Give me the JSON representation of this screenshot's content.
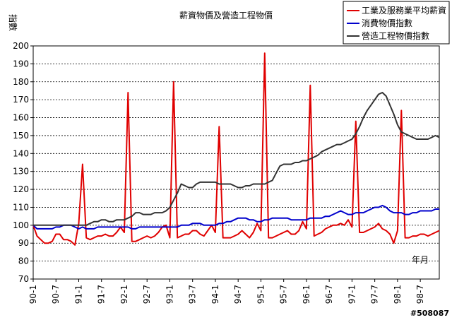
{
  "chart_data": {
    "type": "line",
    "title": "薪資物價及營造工程物價",
    "ylabel": "指數",
    "xlabel": "年月",
    "ylim": [
      70,
      200
    ],
    "yticks": [
      70,
      80,
      90,
      100,
      110,
      120,
      130,
      140,
      150,
      160,
      170,
      180,
      190,
      200
    ],
    "grid": "horizontal-dashed",
    "legend": "top-right",
    "x_ticks": [
      "90-1",
      "90-7",
      "91-1",
      "91-7",
      "92-1",
      "92-7",
      "93-1",
      "93-7",
      "94-1",
      "94-7",
      "95-1",
      "95-7",
      "96-1",
      "96-7",
      "97-1",
      "97-7",
      "98-1",
      "98-7"
    ],
    "x_start": "90-1",
    "x_end": "98-12",
    "series": [
      {
        "name": "工業及服務業平均薪資",
        "color": "#e00000",
        "values": [
          100,
          94,
          92,
          90,
          90,
          91,
          95,
          95,
          92,
          92,
          91,
          89,
          101,
          134,
          93,
          92,
          93,
          94,
          94,
          95,
          94,
          94,
          96,
          99,
          96,
          174,
          91,
          91,
          92,
          93,
          94,
          93,
          94,
          96,
          99,
          100,
          93,
          180,
          93,
          94,
          95,
          95,
          97,
          97,
          95,
          94,
          97,
          100,
          96,
          155,
          93,
          93,
          93,
          94,
          95,
          97,
          95,
          93,
          96,
          101,
          97,
          196,
          93,
          93,
          94,
          95,
          96,
          97,
          95,
          95,
          97,
          102,
          98,
          178,
          94,
          95,
          96,
          98,
          99,
          100,
          100,
          101,
          100,
          103,
          99,
          158,
          96,
          96,
          97,
          98,
          99,
          101,
          98,
          97,
          95,
          90,
          97,
          164,
          93,
          93,
          94,
          94,
          95,
          95,
          94,
          95,
          96,
          97
        ]
      },
      {
        "name": "消費物價指數",
        "color": "#0000cc",
        "values": [
          100,
          98,
          98,
          98,
          98,
          98,
          99,
          99,
          100,
          100,
          100,
          99,
          98,
          99,
          98,
          98,
          98,
          99,
          99,
          99,
          99,
          99,
          99,
          99,
          99,
          99,
          98,
          98,
          99,
          99,
          99,
          99,
          99,
          99,
          99,
          99,
          99,
          99,
          99,
          100,
          100,
          100,
          101,
          101,
          101,
          100,
          100,
          100,
          100,
          101,
          101,
          102,
          102,
          103,
          104,
          104,
          104,
          103,
          103,
          102,
          102,
          103,
          103,
          104,
          104,
          104,
          104,
          104,
          103,
          103,
          103,
          103,
          103,
          104,
          104,
          104,
          104,
          105,
          105,
          106,
          107,
          108,
          107,
          106,
          106,
          107,
          107,
          107,
          108,
          109,
          110,
          110,
          111,
          110,
          108,
          107,
          107,
          107,
          106,
          106,
          107,
          107,
          108,
          108,
          108,
          108,
          109,
          109
        ]
      },
      {
        "name": "營造工程物價指數",
        "color": "#333333",
        "values": [
          100,
          100,
          100,
          100,
          100,
          100,
          100,
          100,
          100,
          100,
          100,
          100,
          100,
          100,
          100,
          101,
          102,
          102,
          103,
          103,
          102,
          102,
          103,
          103,
          103,
          104,
          105,
          107,
          107,
          106,
          106,
          106,
          107,
          107,
          107,
          108,
          110,
          114,
          118,
          123,
          122,
          121,
          121,
          123,
          124,
          124,
          124,
          124,
          124,
          123,
          123,
          123,
          123,
          122,
          121,
          121,
          122,
          122,
          123,
          123,
          123,
          123,
          124,
          125,
          129,
          133,
          134,
          134,
          134,
          135,
          135,
          136,
          136,
          137,
          138,
          139,
          141,
          142,
          143,
          144,
          145,
          145,
          146,
          147,
          148,
          151,
          155,
          160,
          164,
          167,
          170,
          173,
          174,
          172,
          167,
          162,
          156,
          152,
          151,
          150,
          149,
          148,
          148,
          148,
          148,
          149,
          150,
          149
        ]
      }
    ]
  },
  "watermark": "#508087"
}
